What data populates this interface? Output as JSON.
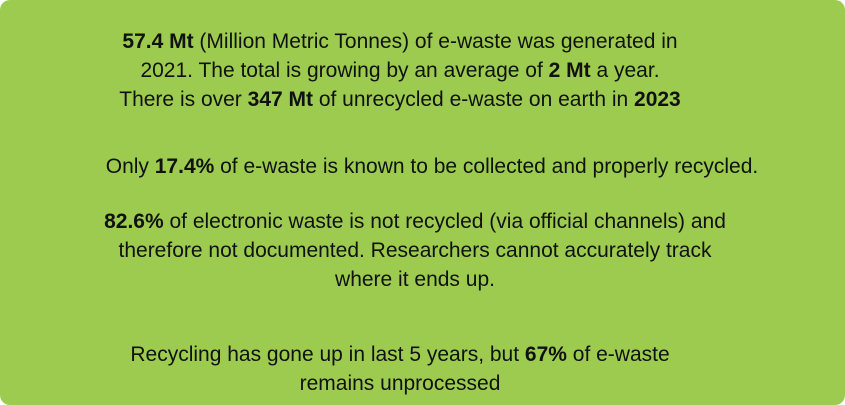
{
  "background_color": "#9ccb4f",
  "text_color": "#111111",
  "paragraphs": {
    "p1": {
      "l1_b1": "57.4 Mt",
      "l1_t1": " (Million Metric Tonnes) of e-waste was generated in",
      "l2_t1": "2021. The total is growing by an average of ",
      "l2_b1": "2 Mt",
      "l2_t2": " a year.",
      "l3_t1": "There is over ",
      "l3_b1": "347 Mt",
      "l3_t2": " of unrecycled e-waste on earth in ",
      "l3_b2": "2023"
    },
    "p2": {
      "t1": "Only ",
      "b1": "17.4%",
      "t2": " of e-waste is known to be collected and properly recycled."
    },
    "p3": {
      "b1": "82.6%",
      "l1_t1": " of electronic waste is not recycled (via official channels) and",
      "l2_t1": "therefore not documented. Researchers cannot accurately track",
      "l3_t1": "where it ends up."
    },
    "p4": {
      "l1_t1": "Recycling has gone up in last 5 years, but ",
      "l1_b1": "67%",
      "l1_t2": " of e-waste",
      "l2_t1": "remains unprocessed"
    }
  }
}
